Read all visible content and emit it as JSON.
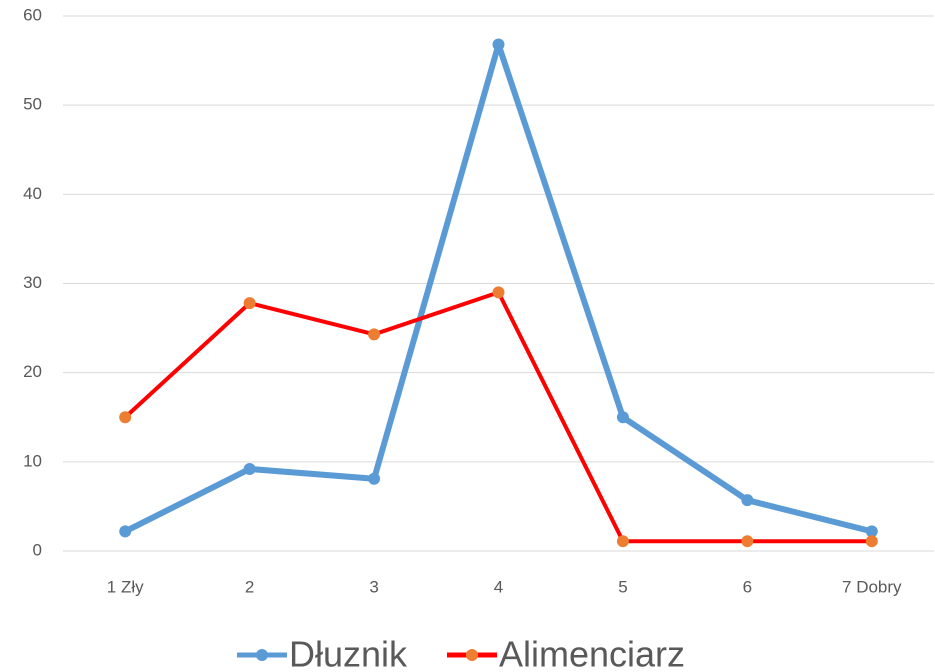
{
  "chart_data": {
    "type": "line",
    "categories": [
      "1 Zły",
      "2",
      "3",
      "4",
      "5",
      "6",
      "7 Dobry"
    ],
    "series": [
      {
        "name": "Dłuznik",
        "color": "#5b9bd5",
        "marker_color": "#5b9bd5",
        "values": [
          2.2,
          9.2,
          8.1,
          56.8,
          15.0,
          5.7,
          2.2
        ]
      },
      {
        "name": "Alimenciarz",
        "color": "#ff0000",
        "marker_color": "#ed7d31",
        "values": [
          15.0,
          27.8,
          24.3,
          29.0,
          1.1,
          1.1,
          1.1
        ]
      }
    ],
    "ylim": [
      0,
      60
    ],
    "yticks": [
      0,
      10,
      20,
      30,
      40,
      50,
      60
    ],
    "grid": true,
    "legend": "bottom"
  }
}
